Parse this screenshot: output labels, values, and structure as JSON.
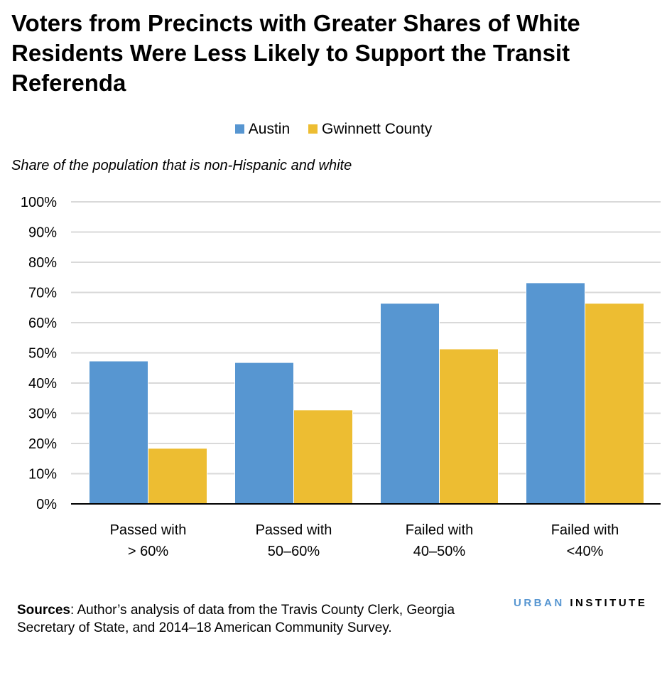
{
  "title": "Voters from Precincts with Greater Shares of White Residents Were Less Likely to Support the Transit Referenda",
  "sources_label": "Sources",
  "sources_text": ": Author’s analysis of data from the Travis County Clerk, Georgia Secretary of State, and 2014–18 American Community Survey.",
  "logo": {
    "part1": "URBAN",
    "part2": "INSTITUTE"
  },
  "chart_data": {
    "type": "bar",
    "title": "Voters from Precincts with Greater Shares of White Residents Were Less Likely to Support the Transit Referenda",
    "ylabel": "Share of the population that is non-Hispanic and white",
    "xlabel": "",
    "categories": [
      [
        "Passed with",
        "> 60%"
      ],
      [
        "Passed with",
        "50–60%"
      ],
      [
        "Failed with",
        "40–50%"
      ],
      [
        "Failed with",
        "<40%"
      ]
    ],
    "series": [
      {
        "name": "Austin",
        "color": "#5796d1",
        "values": [
          47.3,
          46.8,
          66.4,
          73.2
        ]
      },
      {
        "name": "Gwinnett County",
        "color": "#edbd32",
        "values": [
          18.4,
          31.1,
          51.3,
          66.4
        ]
      }
    ],
    "ylim": [
      0,
      100
    ],
    "yticks": [
      "0%",
      "10%",
      "20%",
      "30%",
      "40%",
      "50%",
      "60%",
      "70%",
      "80%",
      "90%",
      "100%"
    ],
    "grid": true,
    "legend_position": "top"
  }
}
